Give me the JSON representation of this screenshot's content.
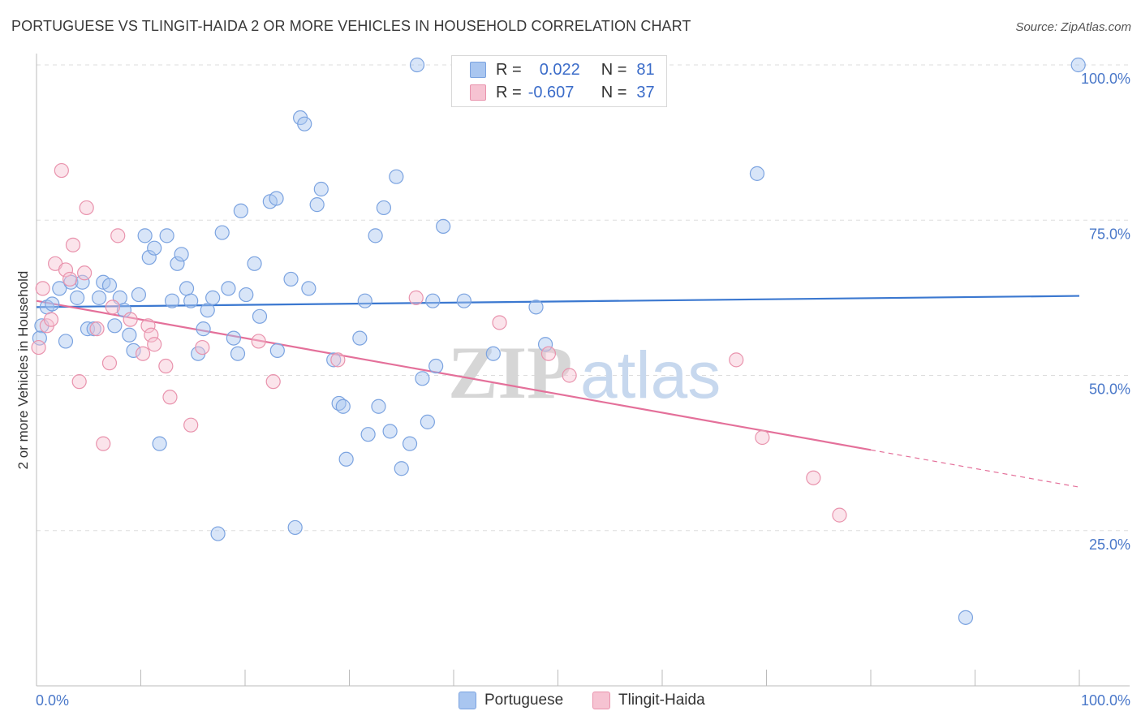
{
  "title": "PORTUGUESE VS TLINGIT-HAIDA 2 OR MORE VEHICLES IN HOUSEHOLD CORRELATION CHART",
  "source": "Source: ZipAtlas.com",
  "watermark": {
    "part1": "ZIP",
    "part2": "atlas"
  },
  "legend": {
    "rows": [
      {
        "r_label": "R =",
        "r_value": "0.022",
        "n_label": "N =",
        "n_value": "81",
        "color": "#a9c6f0",
        "border": "#7ba3e0"
      },
      {
        "r_label": "R =",
        "r_value": "-0.607",
        "n_label": "N =",
        "n_value": "37",
        "color": "#f6c3d2",
        "border": "#e993ad"
      }
    ]
  },
  "bottom_legend": [
    {
      "label": "Portuguese",
      "color": "#a9c6f0",
      "border": "#7ba3e0"
    },
    {
      "label": "Tlingit-Haida",
      "color": "#f6c3d2",
      "border": "#e993ad"
    }
  ],
  "colors": {
    "blue": "#3b78d0",
    "pink": "#e4709a",
    "grid": "#dddddd",
    "tick_text": "#4a78c9"
  },
  "chart_data": {
    "type": "scatter",
    "title": "PORTUGUESE VS TLINGIT-HAIDA 2 OR MORE VEHICLES IN HOUSEHOLD CORRELATION CHART",
    "xlabel": "",
    "ylabel": "2 or more Vehicles in Household",
    "xlim": [
      0,
      100
    ],
    "ylim": [
      0,
      100
    ],
    "x_tick_labels": [
      "0.0%",
      "100.0%"
    ],
    "y_ticks": [
      25,
      50,
      75,
      100
    ],
    "y_tick_labels": [
      "25.0%",
      "50.0%",
      "75.0%",
      "100.0%"
    ],
    "grid": true,
    "legend_position": "top-center",
    "series": [
      {
        "name": "Portuguese",
        "color": "#a9c6f0",
        "points": [
          [
            0.5,
            58.0
          ],
          [
            1.0,
            61.0
          ],
          [
            1.5,
            61.5
          ],
          [
            2.2,
            64.0
          ],
          [
            2.8,
            55.5
          ],
          [
            3.3,
            65.0
          ],
          [
            3.9,
            62.5
          ],
          [
            4.4,
            65.0
          ],
          [
            4.9,
            57.5
          ],
          [
            5.5,
            57.5
          ],
          [
            6.0,
            62.5
          ],
          [
            6.4,
            65.0
          ],
          [
            7.0,
            64.5
          ],
          [
            7.5,
            58.0
          ],
          [
            8.0,
            62.5
          ],
          [
            8.4,
            60.5
          ],
          [
            8.9,
            56.5
          ],
          [
            9.3,
            54.0
          ],
          [
            9.8,
            63.0
          ],
          [
            10.4,
            72.5
          ],
          [
            10.8,
            69.0
          ],
          [
            11.3,
            70.5
          ],
          [
            11.8,
            39.0
          ],
          [
            12.5,
            72.5
          ],
          [
            13.0,
            62.0
          ],
          [
            13.5,
            68.0
          ],
          [
            13.9,
            69.5
          ],
          [
            14.4,
            64.0
          ],
          [
            14.8,
            62.0
          ],
          [
            15.5,
            53.5
          ],
          [
            16.0,
            57.5
          ],
          [
            16.4,
            60.5
          ],
          [
            16.9,
            62.5
          ],
          [
            17.4,
            24.5
          ],
          [
            17.8,
            73.0
          ],
          [
            18.4,
            64.0
          ],
          [
            18.9,
            56.0
          ],
          [
            19.3,
            53.5
          ],
          [
            19.6,
            76.5
          ],
          [
            20.1,
            63.0
          ],
          [
            20.9,
            68.0
          ],
          [
            21.4,
            59.5
          ],
          [
            22.4,
            78.0
          ],
          [
            23.0,
            78.5
          ],
          [
            23.1,
            54.0
          ],
          [
            24.4,
            65.5
          ],
          [
            24.8,
            25.5
          ],
          [
            25.3,
            91.5
          ],
          [
            25.7,
            90.5
          ],
          [
            26.1,
            64.0
          ],
          [
            26.9,
            77.5
          ],
          [
            27.3,
            80.0
          ],
          [
            28.5,
            52.5
          ],
          [
            29.0,
            45.5
          ],
          [
            29.4,
            45.0
          ],
          [
            29.7,
            36.5
          ],
          [
            31.0,
            56.0
          ],
          [
            31.5,
            62.0
          ],
          [
            31.8,
            40.5
          ],
          [
            32.5,
            72.5
          ],
          [
            32.8,
            45.0
          ],
          [
            33.3,
            77.0
          ],
          [
            33.9,
            41.0
          ],
          [
            34.5,
            82.0
          ],
          [
            35.0,
            35.0
          ],
          [
            35.8,
            39.0
          ],
          [
            36.5,
            100.0
          ],
          [
            37.0,
            49.5
          ],
          [
            37.5,
            42.5
          ],
          [
            38.0,
            62.0
          ],
          [
            38.3,
            51.5
          ],
          [
            39.0,
            74.0
          ],
          [
            41.0,
            62.0
          ],
          [
            43.8,
            53.5
          ],
          [
            45.0,
            100.0
          ],
          [
            47.9,
            61.0
          ],
          [
            48.8,
            55.0
          ],
          [
            69.1,
            82.5
          ],
          [
            89.1,
            11.0
          ],
          [
            99.9,
            100.0
          ],
          [
            0.3,
            56.0
          ]
        ],
        "trend": {
          "x": [
            0,
            100
          ],
          "y": [
            61.0,
            62.8
          ]
        }
      },
      {
        "name": "Tlingit-Haida",
        "color": "#f6c3d2",
        "points": [
          [
            0.2,
            54.5
          ],
          [
            0.6,
            64.0
          ],
          [
            1.0,
            58.0
          ],
          [
            1.4,
            59.0
          ],
          [
            1.8,
            68.0
          ],
          [
            2.4,
            83.0
          ],
          [
            2.8,
            67.0
          ],
          [
            3.2,
            65.5
          ],
          [
            3.5,
            71.0
          ],
          [
            4.1,
            49.0
          ],
          [
            4.6,
            66.5
          ],
          [
            4.8,
            77.0
          ],
          [
            5.8,
            57.5
          ],
          [
            6.4,
            39.0
          ],
          [
            7.0,
            52.0
          ],
          [
            7.3,
            61.0
          ],
          [
            7.8,
            72.5
          ],
          [
            9.0,
            59.0
          ],
          [
            10.2,
            53.5
          ],
          [
            10.7,
            58.0
          ],
          [
            11.0,
            56.5
          ],
          [
            11.3,
            55.0
          ],
          [
            12.4,
            51.5
          ],
          [
            12.8,
            46.5
          ],
          [
            14.8,
            42.0
          ],
          [
            15.9,
            54.5
          ],
          [
            21.3,
            55.5
          ],
          [
            22.7,
            49.0
          ],
          [
            28.9,
            52.5
          ],
          [
            36.4,
            62.5
          ],
          [
            44.4,
            58.5
          ],
          [
            49.1,
            53.5
          ],
          [
            51.1,
            50.0
          ],
          [
            67.1,
            52.5
          ],
          [
            69.6,
            40.0
          ],
          [
            74.5,
            33.5
          ],
          [
            77.0,
            27.5
          ]
        ],
        "trend": {
          "x": [
            0,
            100
          ],
          "y": [
            62.0,
            32.0
          ]
        },
        "trend_solid_until_x": 80
      }
    ]
  }
}
